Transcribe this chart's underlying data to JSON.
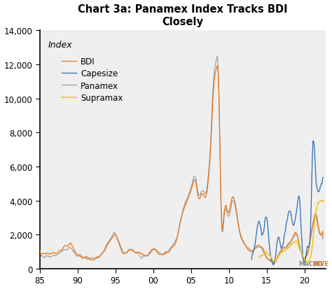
{
  "title": "Chart 3a: Panamex Index Tracks BDI\nClosely",
  "ylabel": "Index",
  "xticklabels": [
    "85",
    "90",
    "95",
    "00",
    "05",
    "10",
    "15",
    "20"
  ],
  "ylim": [
    0,
    14000
  ],
  "yticks": [
    0,
    2000,
    4000,
    6000,
    8000,
    10000,
    12000,
    14000
  ],
  "legend_order": [
    "BDI",
    "Capesize",
    "Panamex",
    "Supramax"
  ],
  "colors": {
    "BDI": "#E8761A",
    "Capesize": "#2E6DB4",
    "Panamex": "#999999",
    "Supramax": "#F5C518"
  },
  "background": "#FFFFFF",
  "plot_bg": "#F0F0F0"
}
